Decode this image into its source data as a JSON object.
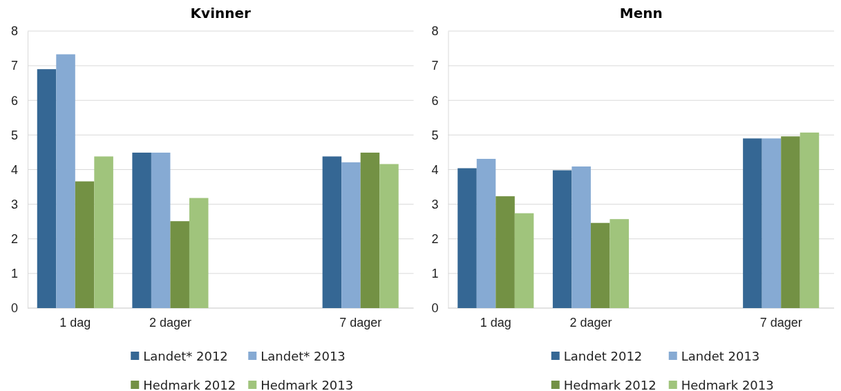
{
  "chart_data": [
    {
      "type": "bar",
      "title": "Kvinner",
      "categories": [
        "1 dag",
        "2 dager",
        null,
        "7 dager"
      ],
      "ylim": [
        0,
        8
      ],
      "yticks": [
        0,
        1,
        2,
        3,
        4,
        5,
        6,
        7,
        8
      ],
      "grid": "y",
      "legend": "bottom",
      "series": [
        {
          "name": "Landet* 2012",
          "color": "#356794",
          "values": [
            6.9,
            4.49,
            null,
            4.38
          ]
        },
        {
          "name": "Landet* 2013",
          "color": "#86aad3",
          "values": [
            7.33,
            4.49,
            null,
            4.21
          ]
        },
        {
          "name": "Hedmark 2012",
          "color": "#739144",
          "values": [
            3.66,
            2.51,
            null,
            4.49
          ]
        },
        {
          "name": "Hedmark 2013",
          "color": "#a0c47c",
          "values": [
            4.38,
            3.18,
            null,
            4.16
          ]
        }
      ]
    },
    {
      "type": "bar",
      "title": "Menn",
      "categories": [
        "1 dag",
        "2 dager",
        null,
        "7 dager"
      ],
      "ylim": [
        0,
        8
      ],
      "yticks": [
        0,
        1,
        2,
        3,
        4,
        5,
        6,
        7,
        8
      ],
      "grid": "y",
      "legend": "bottom",
      "series": [
        {
          "name": "Landet 2012",
          "color": "#356794",
          "values": [
            4.04,
            3.98,
            null,
            4.9
          ]
        },
        {
          "name": "Landet 2013",
          "color": "#86aad3",
          "values": [
            4.31,
            4.09,
            null,
            4.9
          ]
        },
        {
          "name": "Hedmark 2012",
          "color": "#739144",
          "values": [
            3.23,
            2.46,
            null,
            4.96
          ]
        },
        {
          "name": "Hedmark 2013",
          "color": "#a0c47c",
          "values": [
            2.74,
            2.57,
            null,
            5.07
          ]
        }
      ]
    }
  ]
}
